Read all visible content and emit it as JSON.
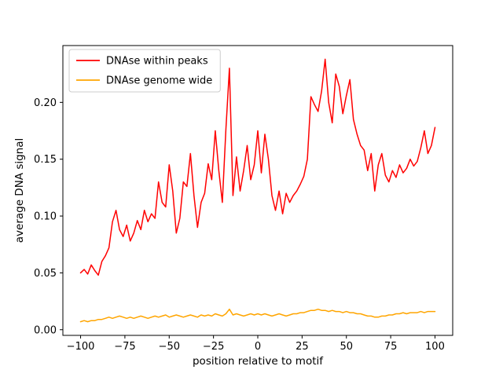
{
  "figure": {
    "background": "#ffffff"
  },
  "chart_data": {
    "type": "line",
    "title": "",
    "xlabel": "position relative to motif",
    "ylabel": "average DNA signal",
    "xlim": [
      -110,
      110
    ],
    "ylim": [
      -0.005,
      0.25
    ],
    "xticks": [
      -100,
      -75,
      -50,
      -25,
      0,
      25,
      50,
      75,
      100
    ],
    "yticks": [
      0,
      0.05,
      0.1,
      0.15,
      0.2
    ],
    "grid": false,
    "legend": {
      "position": "upper-left",
      "border_color": "#cccccc",
      "background": "#ffffff"
    },
    "x": [
      -100,
      -98,
      -96,
      -94,
      -92,
      -90,
      -88,
      -86,
      -84,
      -82,
      -80,
      -78,
      -76,
      -74,
      -72,
      -70,
      -68,
      -66,
      -64,
      -62,
      -60,
      -58,
      -56,
      -54,
      -52,
      -50,
      -48,
      -46,
      -44,
      -42,
      -40,
      -38,
      -36,
      -34,
      -32,
      -30,
      -28,
      -26,
      -24,
      -22,
      -20,
      -18,
      -16,
      -14,
      -12,
      -10,
      -8,
      -6,
      -4,
      -2,
      0,
      2,
      4,
      6,
      8,
      10,
      12,
      14,
      16,
      18,
      20,
      22,
      24,
      26,
      28,
      30,
      32,
      34,
      36,
      38,
      40,
      42,
      44,
      46,
      48,
      50,
      52,
      54,
      56,
      58,
      60,
      62,
      64,
      66,
      68,
      70,
      72,
      74,
      76,
      78,
      80,
      82,
      84,
      86,
      88,
      90,
      92,
      94,
      96,
      98,
      100
    ],
    "series": [
      {
        "name": "DNAse within peaks",
        "color": "#ff0000",
        "y": [
          0.05,
          0.053,
          0.049,
          0.057,
          0.052,
          0.048,
          0.06,
          0.065,
          0.072,
          0.095,
          0.105,
          0.088,
          0.082,
          0.092,
          0.078,
          0.085,
          0.096,
          0.088,
          0.105,
          0.095,
          0.102,
          0.098,
          0.13,
          0.112,
          0.108,
          0.145,
          0.122,
          0.085,
          0.098,
          0.13,
          0.126,
          0.155,
          0.118,
          0.09,
          0.112,
          0.12,
          0.146,
          0.132,
          0.175,
          0.14,
          0.112,
          0.176,
          0.23,
          0.118,
          0.152,
          0.122,
          0.14,
          0.162,
          0.132,
          0.145,
          0.175,
          0.138,
          0.172,
          0.15,
          0.118,
          0.105,
          0.122,
          0.102,
          0.12,
          0.112,
          0.118,
          0.122,
          0.128,
          0.135,
          0.15,
          0.205,
          0.198,
          0.192,
          0.21,
          0.238,
          0.2,
          0.182,
          0.225,
          0.214,
          0.19,
          0.206,
          0.22,
          0.185,
          0.172,
          0.162,
          0.158,
          0.14,
          0.155,
          0.122,
          0.145,
          0.155,
          0.136,
          0.13,
          0.14,
          0.134,
          0.145,
          0.138,
          0.142,
          0.15,
          0.144,
          0.148,
          0.16,
          0.175,
          0.155,
          0.162,
          0.178
        ]
      },
      {
        "name": "DNAse genome wide",
        "color": "#ffa500",
        "y": [
          0.007,
          0.008,
          0.007,
          0.008,
          0.008,
          0.009,
          0.009,
          0.01,
          0.011,
          0.01,
          0.011,
          0.012,
          0.011,
          0.01,
          0.011,
          0.01,
          0.011,
          0.012,
          0.011,
          0.01,
          0.011,
          0.012,
          0.011,
          0.012,
          0.013,
          0.011,
          0.012,
          0.013,
          0.012,
          0.011,
          0.012,
          0.013,
          0.012,
          0.011,
          0.013,
          0.012,
          0.013,
          0.012,
          0.014,
          0.013,
          0.012,
          0.014,
          0.018,
          0.013,
          0.014,
          0.013,
          0.012,
          0.013,
          0.014,
          0.013,
          0.014,
          0.013,
          0.014,
          0.013,
          0.012,
          0.013,
          0.014,
          0.013,
          0.012,
          0.013,
          0.014,
          0.014,
          0.015,
          0.015,
          0.016,
          0.017,
          0.017,
          0.018,
          0.017,
          0.017,
          0.016,
          0.017,
          0.016,
          0.016,
          0.015,
          0.016,
          0.015,
          0.015,
          0.014,
          0.014,
          0.013,
          0.012,
          0.012,
          0.011,
          0.011,
          0.012,
          0.012,
          0.013,
          0.013,
          0.014,
          0.014,
          0.015,
          0.014,
          0.015,
          0.015,
          0.015,
          0.016,
          0.015,
          0.016,
          0.016,
          0.016
        ]
      }
    ]
  }
}
